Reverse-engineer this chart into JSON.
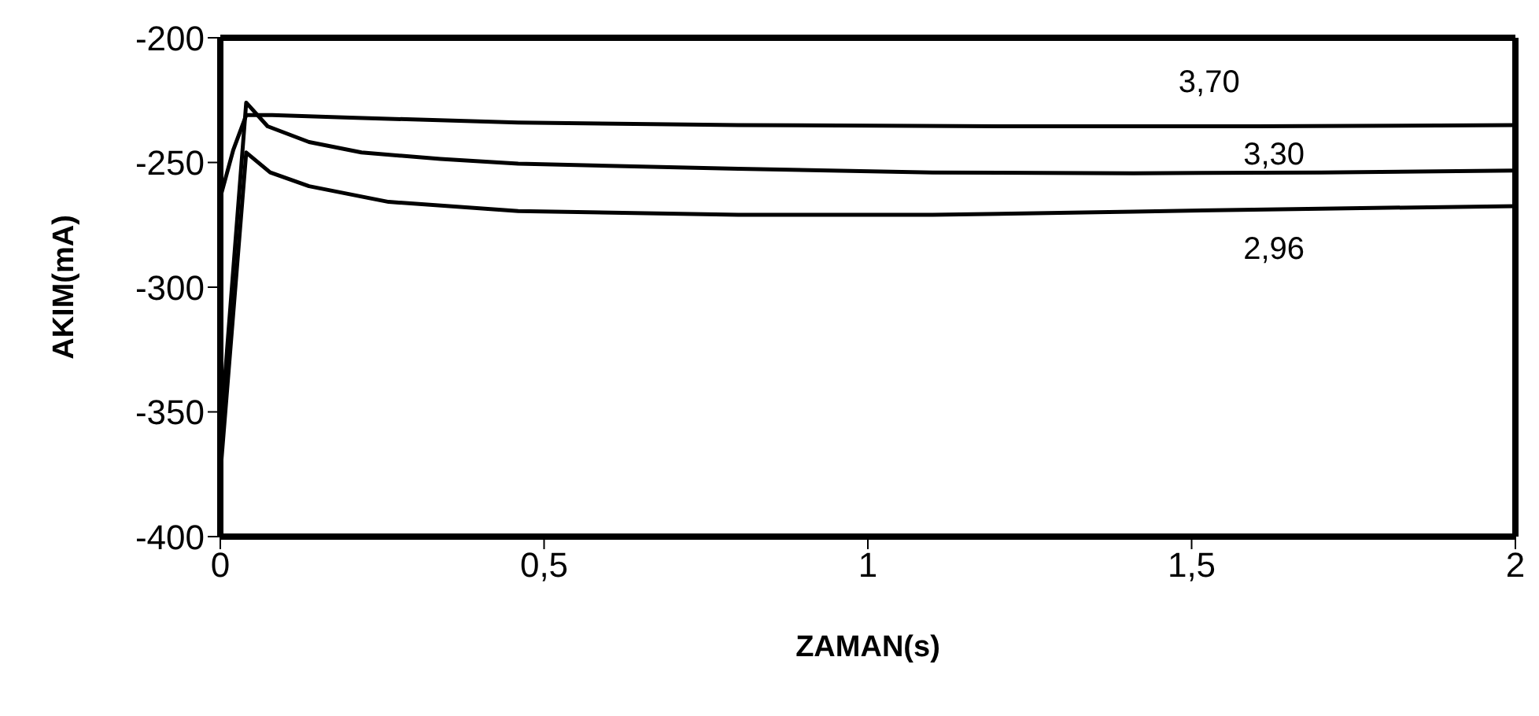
{
  "chart_data": {
    "type": "line",
    "xlabel": "ZAMAN(s)",
    "ylabel": "AKIM(mA)",
    "xlim": [
      0,
      2
    ],
    "xticks": [
      0,
      {
        "value": 0.5,
        "label": "0,5"
      },
      1,
      {
        "value": 1.5,
        "label": "1,5"
      },
      2
    ],
    "ylim": [
      -400,
      -200
    ],
    "yticks": [
      -200,
      -250,
      -300,
      -350,
      -400
    ],
    "grid": false,
    "legend": false,
    "marker": "none",
    "line_style": "solid",
    "series": [
      {
        "name": "3,70",
        "color": "#000000",
        "x": [
          0,
          0.02,
          0.04,
          0.08,
          0.2,
          0.46,
          0.8,
          1.2,
          1.6,
          2
        ],
        "values": [
          -264,
          -245,
          -231,
          -231,
          -232,
          -234,
          -235,
          -235.5,
          -235.5,
          -235
        ]
      },
      {
        "name": "3,30",
        "color": "#000000",
        "x": [
          0,
          0.04,
          0.073,
          0.137,
          0.218,
          0.34,
          0.46,
          0.8,
          1.1,
          1.41,
          1.7,
          2
        ],
        "values": [
          -360,
          -226,
          -235.5,
          -241.8,
          -246,
          -248.6,
          -250.5,
          -252.5,
          -254,
          -254.3,
          -254,
          -253.2
        ]
      },
      {
        "name": "2,96",
        "color": "#000000",
        "x": [
          0,
          0.04,
          0.077,
          0.137,
          0.26,
          0.46,
          0.8,
          1.1,
          1.41,
          1.7,
          2
        ],
        "values": [
          -375,
          -246,
          -254,
          -259.5,
          -265.8,
          -269.5,
          -271,
          -271,
          -269.7,
          -268.5,
          -267.5
        ]
      }
    ]
  }
}
